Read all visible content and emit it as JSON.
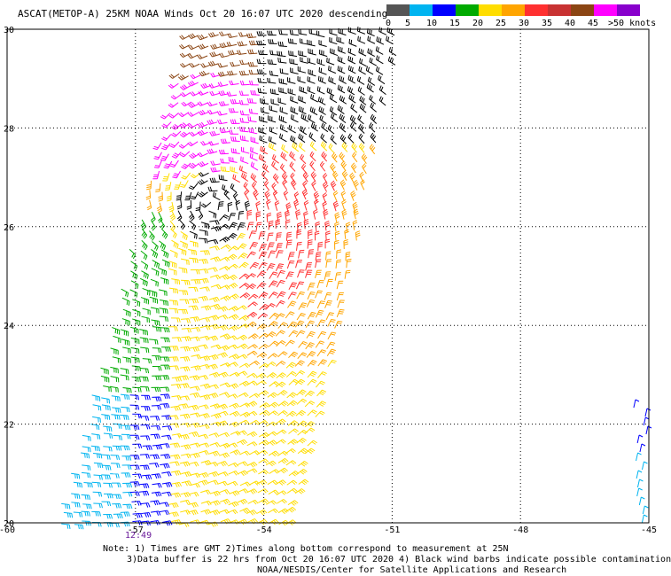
{
  "header": {
    "title": "ASCAT(METOP-A) 25KM NOAA Winds  Oct 20 16:07 UTC 2020 descending"
  },
  "legend": {
    "colors": [
      "#555555",
      "#00b4f0",
      "#0000ff",
      "#00aa00",
      "#ffdd00",
      "#ffa500",
      "#ff3030",
      "#c83232",
      "#8b4513",
      "#ff00ff",
      "#8800cc"
    ],
    "labels": [
      "0",
      "5",
      "10",
      "15",
      "20",
      "25",
      "30",
      "35",
      "40",
      "45",
      ">50 knots"
    ]
  },
  "map": {
    "lon_ticks": [
      "-60",
      "-57",
      "-54",
      "-51",
      "-48",
      "-45"
    ],
    "lat_ticks": [
      "30",
      "28",
      "26",
      "24",
      "22",
      "20"
    ],
    "lon_range": [
      -60,
      -45
    ],
    "lat_range": [
      20,
      30
    ],
    "grid": "dotted",
    "time_label": "12:49",
    "center_of_circulation": {
      "lon": -55.2,
      "lat": 26.4
    }
  },
  "notes": {
    "line1": "Note: 1) Times are GMT 2)Times along bottom correspond to measurement at 25N",
    "line2": "3)Data buffer is 22 hrs from Oct 20 16:07 UTC 2020 4) Black wind barbs indicate possible contamination",
    "line3": "NOAA/NESDIS/Center for Satellite Applications and Research"
  }
}
